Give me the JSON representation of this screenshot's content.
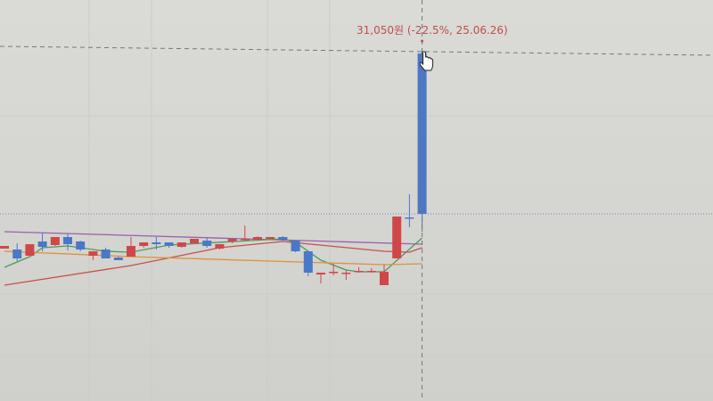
{
  "chart_data": {
    "type": "candlestick",
    "title": "",
    "xlabel": "",
    "ylabel": "",
    "grid": true,
    "colors": {
      "up": "#d0474a",
      "down": "#4a78c8",
      "ma_purple": "#9b5fb0",
      "ma_green": "#4f9a5c",
      "ma_red": "#c8504a",
      "ma_orange": "#e0913c",
      "tooltip": "#c0504d"
    },
    "candles": [
      {
        "o": 22290,
        "h": 22410,
        "l": 22290,
        "c": 22410
      },
      {
        "o": 22250,
        "h": 22530,
        "l": 21730,
        "c": 21850
      },
      {
        "o": 21970,
        "h": 22490,
        "l": 21970,
        "c": 22490
      },
      {
        "o": 22610,
        "h": 23010,
        "l": 22170,
        "c": 22370
      },
      {
        "o": 22450,
        "h": 22810,
        "l": 22410,
        "c": 22810
      },
      {
        "o": 22810,
        "h": 22970,
        "l": 22210,
        "c": 22490
      },
      {
        "o": 22610,
        "h": 22650,
        "l": 22170,
        "c": 22250
      },
      {
        "o": 21970,
        "h": 22170,
        "l": 21770,
        "c": 22170
      },
      {
        "o": 22250,
        "h": 22330,
        "l": 21850,
        "c": 21850
      },
      {
        "o": 21890,
        "h": 21930,
        "l": 21770,
        "c": 21770
      },
      {
        "o": 21930,
        "h": 22810,
        "l": 21930,
        "c": 22410
      },
      {
        "o": 22410,
        "h": 22570,
        "l": 22330,
        "c": 22570
      },
      {
        "o": 22570,
        "h": 22810,
        "l": 22250,
        "c": 22490
      },
      {
        "o": 22570,
        "h": 22570,
        "l": 22330,
        "c": 22410
      },
      {
        "o": 22370,
        "h": 22570,
        "l": 22330,
        "c": 22570
      },
      {
        "o": 22530,
        "h": 22730,
        "l": 22530,
        "c": 22730
      },
      {
        "o": 22650,
        "h": 22770,
        "l": 22330,
        "c": 22410
      },
      {
        "o": 22290,
        "h": 22490,
        "l": 22250,
        "c": 22490
      },
      {
        "o": 22610,
        "h": 22730,
        "l": 22530,
        "c": 22730
      },
      {
        "o": 22690,
        "h": 23330,
        "l": 22650,
        "c": 22730
      },
      {
        "o": 22690,
        "h": 22850,
        "l": 22690,
        "c": 22810
      },
      {
        "o": 22730,
        "h": 22810,
        "l": 22690,
        "c": 22810
      },
      {
        "o": 22810,
        "h": 22850,
        "l": 22650,
        "c": 22690
      },
      {
        "o": 22650,
        "h": 22650,
        "l": 22130,
        "c": 22170
      },
      {
        "o": 22170,
        "h": 22170,
        "l": 21050,
        "c": 21210
      },
      {
        "o": 21130,
        "h": 21210,
        "l": 20730,
        "c": 21210
      },
      {
        "o": 21210,
        "h": 21610,
        "l": 21090,
        "c": 21250
      },
      {
        "o": 21170,
        "h": 21330,
        "l": 20890,
        "c": 21210
      },
      {
        "o": 21290,
        "h": 21450,
        "l": 21210,
        "c": 21290
      },
      {
        "o": 21290,
        "h": 21410,
        "l": 21210,
        "c": 21290
      },
      {
        "o": 20650,
        "h": 21570,
        "l": 20650,
        "c": 21250
      },
      {
        "o": 21850,
        "h": 23730,
        "l": 21850,
        "c": 23730
      },
      {
        "o": 23690,
        "h": 24730,
        "l": 23250,
        "c": 23650
      },
      {
        "o": 31050,
        "h": 31050,
        "l": 23050,
        "c": 23850
      }
    ],
    "moving_averages": [
      {
        "color": "#9b5fb0",
        "points": [
          [
            0,
            23050
          ],
          [
            19,
            22730
          ],
          [
            33,
            22490
          ]
        ]
      },
      {
        "color": "#4f9a5c",
        "points": [
          [
            0,
            21450
          ],
          [
            2,
            21930
          ],
          [
            3,
            22330
          ],
          [
            5,
            22410
          ],
          [
            8,
            22170
          ],
          [
            10,
            22130
          ],
          [
            13,
            22450
          ],
          [
            22,
            22730
          ],
          [
            23,
            22570
          ],
          [
            25,
            21770
          ],
          [
            27,
            21330
          ],
          [
            28,
            21250
          ],
          [
            30,
            21250
          ],
          [
            33,
            22770
          ]
        ]
      },
      {
        "color": "#c8504a",
        "points": [
          [
            0,
            20650
          ],
          [
            10,
            21530
          ],
          [
            17,
            22330
          ],
          [
            22,
            22610
          ],
          [
            30,
            22170
          ],
          [
            32,
            22130
          ],
          [
            33,
            22330
          ]
        ]
      },
      {
        "color": "#e0913c",
        "points": [
          [
            0,
            22170
          ],
          [
            10,
            21930
          ],
          [
            21,
            21730
          ],
          [
            30,
            21570
          ],
          [
            33,
            21610
          ]
        ]
      }
    ],
    "current_price": 23850,
    "crosshair": {
      "index": 33,
      "price": 31050
    }
  },
  "tooltip": {
    "text": "31,050원 (-22.5%, 25.06.26)"
  }
}
